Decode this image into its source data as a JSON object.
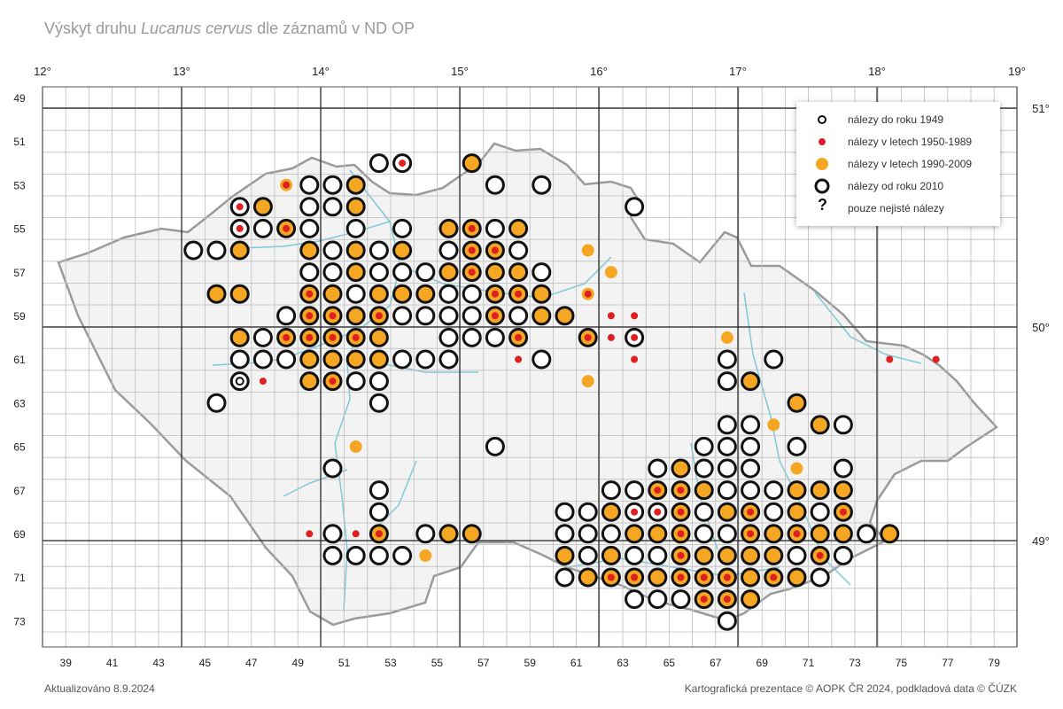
{
  "title": {
    "prefix": "Výskyt druhu ",
    "species": "Lucanus cervus",
    "suffix": " dle záznamů v ND OP"
  },
  "top_lon_labels": [
    "12°",
    "13°",
    "14°",
    "15°",
    "16°",
    "17°",
    "18°",
    "19°"
  ],
  "right_lat_labels": [
    "51°",
    "50°",
    "49°"
  ],
  "left_row_labels": [
    "49",
    "51",
    "53",
    "55",
    "57",
    "59",
    "61",
    "63",
    "65",
    "67",
    "69",
    "71",
    "73"
  ],
  "bottom_col_labels": [
    "39",
    "41",
    "43",
    "45",
    "47",
    "49",
    "51",
    "53",
    "55",
    "57",
    "59",
    "61",
    "63",
    "65",
    "67",
    "69",
    "71",
    "73",
    "75",
    "77",
    "79"
  ],
  "legend": [
    {
      "label": "nálezy do roku 1949",
      "symbol": "small-ring"
    },
    {
      "label": "nálezy v letech 1950-1989",
      "symbol": "red-dot"
    },
    {
      "label": "nálezy v letech 1990-2009",
      "symbol": "orange-dot"
    },
    {
      "label": "nálezy od roku 2010",
      "symbol": "big-ring"
    },
    {
      "label": "pouze nejisté nálezy",
      "symbol": "?"
    }
  ],
  "colors": {
    "orange": "#f5a623",
    "red": "#e02020",
    "ring": "#111111",
    "river": "#7ec8d8",
    "border": "#9a9a9a"
  },
  "footer": {
    "updated": "Aktualizováno 8.9.2024",
    "credit": "Kartografická prezentace © AOPK ČR 2024, podkladová data © ČÚZK"
  },
  "records": [
    "52:o",
    "53:or",
    "56:bo",
    "48:hr",
    "49:o",
    "50:o",
    "51:b",
    "57:o",
    "59:o",
    "46:or",
    "47:b",
    "49:o",
    "50:o",
    "51:b",
    "63:o",
    "46:or",
    "47:o",
    "48:br",
    "49:o",
    "51:o",
    "53:o",
    "55:b",
    "56:br",
    "57:o",
    "58:b",
    "44:o",
    "45:o",
    "46:b",
    "49:b",
    "50:o",
    "51:b",
    "52:o",
    "53:b",
    "55:o",
    "56:br",
    "57:br",
    "58:o",
    "61:h",
    "49:o",
    "50:o",
    "51:b",
    "52:o",
    "53:o",
    "54:o",
    "55:b",
    "56:br",
    "57:b",
    "58:b",
    "59:o",
    "62:h",
    "45:b",
    "46:b",
    "49:br",
    "50:b",
    "51:o",
    "52:b",
    "53:b",
    "54:b",
    "55:o",
    "56:o",
    "57:br",
    "58:br",
    "59:b",
    "61:hr",
    "48:o",
    "49:br",
    "50:br",
    "51:b",
    "52:br",
    "53:o",
    "54:o",
    "55:o",
    "56:o",
    "57:br",
    "58:o",
    "59:b",
    "60:b",
    "62:r",
    "63:r",
    "46:b",
    "47:o",
    "48:br",
    "49:br",
    "50:br",
    "51:br",
    "52:b",
    "55:o",
    "56:o",
    "57:o",
    "58:br",
    "61:br",
    "62:r",
    "63:or",
    "67:h",
    "46:o",
    "47:o",
    "48:o",
    "49:b",
    "50:b",
    "51:b",
    "52:b",
    "53:o",
    "54:o",
    "55:o",
    "58:r",
    "59:o",
    "63:r",
    "67:o",
    "69:o",
    "74:r",
    "76:r",
    "46:oo",
    "47:r",
    "49:b",
    "50:br",
    "51:o",
    "52:o",
    "61:h",
    "67:o",
    "68:b",
    "45:o",
    "52:o",
    "70:b",
    "67:o",
    "68:o",
    "69:h",
    "71:b",
    "72:o",
    "51:h",
    "57:o",
    "66:o",
    "67:o",
    "68:o",
    "70:o",
    "50:o",
    "64:o",
    "65:b",
    "66:o",
    "67:o",
    "68:o",
    "70:h",
    "72:o",
    "52:o",
    "62:o",
    "63:o",
    "64:br",
    "65:br",
    "66:b",
    "67:o",
    "68:o",
    "69:o",
    "70:b",
    "71:b",
    "72:b",
    "52:o",
    "60:o",
    "61:o",
    "62:b",
    "63:or",
    "64:or",
    "65:br",
    "66:o",
    "67:b",
    "68:br",
    "69:o",
    "70:b",
    "71:o",
    "72:br",
    "49:r",
    "50:o",
    "51:r",
    "52:br",
    "54:o",
    "55:b",
    "56:b",
    "60:o",
    "61:o",
    "62:o",
    "63:bo",
    "64:b",
    "65:br",
    "66:o",
    "67:o",
    "68:br",
    "69:b",
    "70:br",
    "71:b",
    "72:b",
    "73:o",
    "74:b",
    "50:o",
    "51:o",
    "52:o",
    "53:o",
    "54:h",
    "60:b",
    "61:o",
    "62:b",
    "63:o",
    "64:o",
    "65:br",
    "66:b",
    "67:b",
    "68:b",
    "69:b",
    "70:o",
    "71:br",
    "72:o",
    "60:o",
    "61:b",
    "62:br",
    "63:br",
    "64:b",
    "65:br",
    "66:br",
    "67:br",
    "68:b",
    "69:br",
    "70:b",
    "71:o",
    "63:o",
    "64:o",
    "65:o",
    "66:br",
    "67:br",
    "68:b",
    "67:o"
  ]
}
